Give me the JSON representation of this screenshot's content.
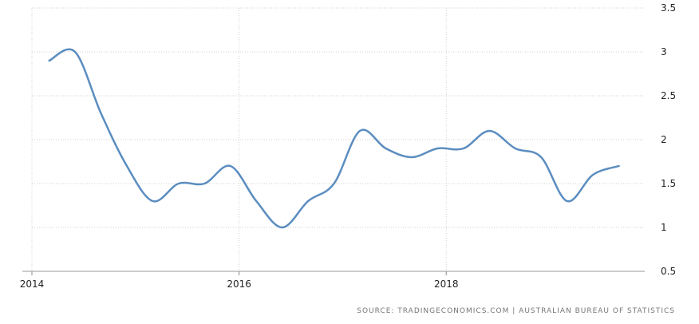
{
  "chart_data": {
    "type": "line",
    "x": [
      "2014-03",
      "2014-06",
      "2014-09",
      "2014-12",
      "2015-03",
      "2015-06",
      "2015-09",
      "2015-12",
      "2016-03",
      "2016-06",
      "2016-09",
      "2016-12",
      "2017-03",
      "2017-06",
      "2017-09",
      "2017-12",
      "2018-03",
      "2018-06",
      "2018-09",
      "2018-12",
      "2019-03",
      "2019-06",
      "2019-09"
    ],
    "series": [
      {
        "values": [
          2.9,
          3.0,
          2.3,
          1.7,
          1.3,
          1.5,
          1.5,
          1.7,
          1.3,
          1.0,
          1.3,
          1.5,
          2.1,
          1.9,
          1.8,
          1.9,
          1.9,
          2.1,
          1.9,
          1.8,
          1.3,
          1.6,
          1.7
        ],
        "color": "#5b8dc0"
      }
    ],
    "xlim": [
      "2014-01",
      "2019-12"
    ],
    "ylim": [
      0.5,
      3.5
    ],
    "x_ticks": [
      "2014",
      "2016",
      "2018"
    ],
    "y_ticks": [
      "0.5",
      "1",
      "1.5",
      "2",
      "2.5",
      "3",
      "3.5"
    ],
    "grid": true,
    "legend": "none"
  },
  "footer": {
    "source": "SOURCE: TRADINGECONOMICS.COM | AUSTRALIAN BUREAU OF STATISTICS"
  }
}
